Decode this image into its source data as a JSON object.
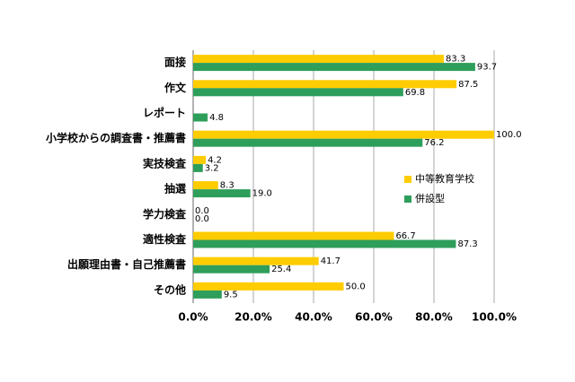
{
  "chart_data": {
    "type": "bar",
    "orientation": "horizontal",
    "categories": [
      "面接",
      "作文",
      "レポート",
      "小学校からの調査書・推薦書",
      "実技検査",
      "抽選",
      "学力検査",
      "適性検査",
      "出願理由書・自己推薦書",
      "その他"
    ],
    "series": [
      {
        "name": "中等教育学校",
        "color": "#ffcc00",
        "values": [
          83.3,
          87.5,
          null,
          100.0,
          4.2,
          8.3,
          0.0,
          66.7,
          41.7,
          50.0
        ],
        "value_labels": [
          "83.3",
          "87.5",
          null,
          "100.0",
          "4.2",
          "8.3",
          "0.0",
          "66.7",
          "41.7",
          "50.0"
        ]
      },
      {
        "name": "併設型",
        "color": "#2e9e5b",
        "values": [
          93.7,
          69.8,
          4.8,
          76.2,
          3.2,
          19.0,
          0.0,
          87.3,
          25.4,
          9.5
        ],
        "value_labels": [
          "93.7",
          "69.8",
          "4.8",
          "76.2",
          "3.2",
          "19.0",
          "0.0",
          "87.3",
          "25.4",
          "9.5"
        ]
      }
    ],
    "xlim": [
      0,
      100
    ],
    "xticks": [
      {
        "value": 0,
        "label": "0.0%"
      },
      {
        "value": 20,
        "label": "20.0%"
      },
      {
        "value": 40,
        "label": "40.0%"
      },
      {
        "value": 60,
        "label": "60.0%"
      },
      {
        "value": 80,
        "label": "80.0%"
      },
      {
        "value": 100,
        "label": "100.0%"
      }
    ],
    "grid": true,
    "legend": "right"
  }
}
